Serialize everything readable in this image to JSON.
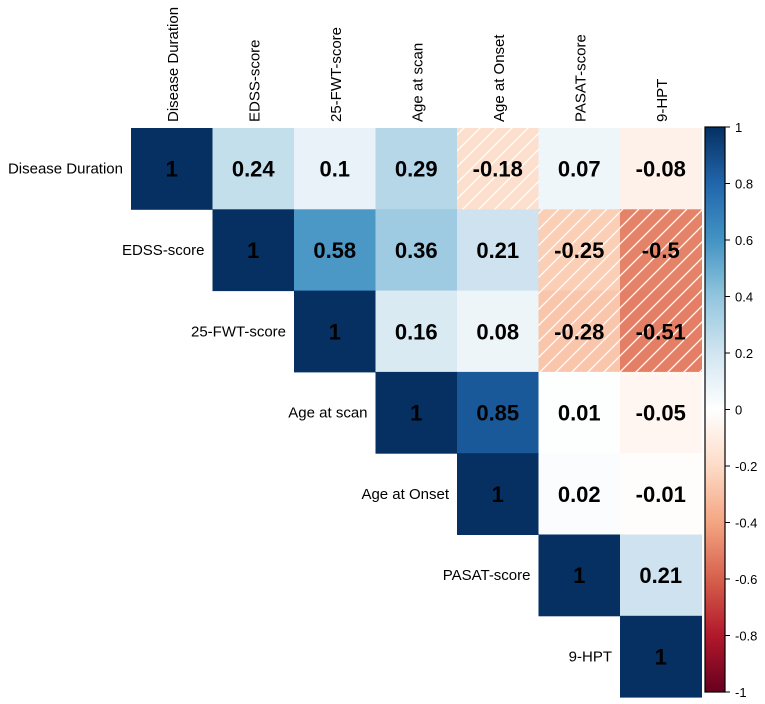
{
  "chart_data": {
    "type": "heatmap",
    "variables": [
      "Disease Duration",
      "EDSS-score",
      "25-FWT-score",
      "Age at scan",
      "Age at Onset",
      "PASAT-score",
      "9-HPT"
    ],
    "matrix": [
      [
        1,
        0.24,
        0.1,
        0.29,
        -0.18,
        0.07,
        -0.08
      ],
      [
        null,
        1,
        0.58,
        0.36,
        0.21,
        -0.25,
        -0.5
      ],
      [
        null,
        null,
        1,
        0.16,
        0.08,
        -0.28,
        -0.51
      ],
      [
        null,
        null,
        null,
        1,
        0.85,
        0.01,
        -0.05
      ],
      [
        null,
        null,
        null,
        null,
        1,
        0.02,
        -0.01
      ],
      [
        null,
        null,
        null,
        null,
        null,
        1,
        0.21
      ],
      [
        null,
        null,
        null,
        null,
        null,
        null,
        1
      ]
    ],
    "hatched_cells": [
      [
        1,
        5
      ],
      [
        1,
        6
      ],
      [
        2,
        5
      ],
      [
        2,
        6
      ],
      [
        0,
        4
      ]
    ],
    "colorbar": {
      "range": [
        -1,
        1
      ],
      "ticks": [
        "1",
        "0.8",
        "0.6",
        "0.4",
        "0.2",
        "0",
        "-0.2",
        "-0.4",
        "-0.6",
        "-0.8",
        "-1"
      ]
    },
    "layout": "upper-triangle",
    "title": ""
  },
  "colors": {
    "neg": "#67001f",
    "zero": "#ffffff",
    "pos": "#053061",
    "border": "#000000"
  }
}
